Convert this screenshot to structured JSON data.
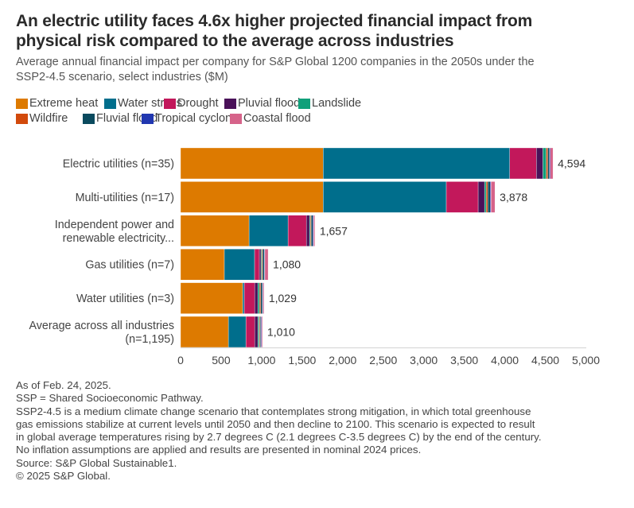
{
  "title": "An electric utility faces 4.6x higher projected financial impact from physical risk compared to the average across industries",
  "title_lines": [
    "An electric utility faces 4.6x higher projected financial impact from",
    "physical risk compared to the average across industries"
  ],
  "subtitle_lines": [
    "Average annual financial impact per company for S&P Global 1200 companies in the 2050s under the",
    "SSP2-4.5 scenario, select industries ($M)"
  ],
  "footer_lines": [
    "As of Feb. 24, 2025.",
    "SSP = Shared Socioeconomic Pathway.",
    "SSP2-4.5 is a medium climate change scenario that contemplates strong mitigation, in which total greenhouse",
    "gas emissions stabilize at current levels until 2050 and then decline to 2100. This scenario is expected to result",
    "in global average temperatures rising by 2.7 degrees C (2.1 degrees C-3.5 degrees C) by the end of the century.",
    "No inflation assumptions are applied and results are presented in nominal 2024 prices.",
    "Source: S&P Global Sustainable1.",
    "© 2025 S&P Global."
  ],
  "chart_data": {
    "type": "bar",
    "orientation": "horizontal",
    "stacked": true,
    "title": "An electric utility faces 4.6x higher projected financial impact from physical risk compared to the average across industries",
    "subtitle": "Average annual financial impact per company for S&P Global 1200 companies in the 2050s under the SSP2-4.5 scenario, select industries ($M)",
    "xlabel": "",
    "ylabel": "",
    "xlim": [
      0,
      5000
    ],
    "xticks": [
      0,
      500,
      1000,
      1500,
      2000,
      2500,
      3000,
      3500,
      4000,
      4500,
      5000
    ],
    "xtick_labels": [
      "0",
      "500",
      "1,000",
      "1,500",
      "2,000",
      "2,500",
      "3,000",
      "3,500",
      "4,000",
      "4,500",
      "5,000"
    ],
    "grid": false,
    "legend_position": "top",
    "categories": [
      [
        "Electric utilities (n=35)"
      ],
      [
        "Multi-utilities (n=17)"
      ],
      [
        "Independent power and",
        "renewable electricity..."
      ],
      [
        "Gas utilities (n=7)"
      ],
      [
        "Water utilities (n=3)"
      ],
      [
        "Average across all industries",
        "(n=1,195)"
      ]
    ],
    "totals": [
      4594,
      3878,
      1657,
      1080,
      1029,
      1010
    ],
    "total_labels": [
      "4,594",
      "3,878",
      "1,657",
      "1,080",
      "1,029",
      "1,010"
    ],
    "series": [
      {
        "name": "Extreme heat",
        "color": "#dd7a00",
        "values": [
          1760,
          1760,
          845,
          540,
          766,
          590
        ]
      },
      {
        "name": "Water stress",
        "color": "#006e8c",
        "values": [
          2300,
          1518,
          481,
          373,
          20,
          216
        ]
      },
      {
        "name": "Drought",
        "color": "#c2185b",
        "values": [
          330,
          393,
          226,
          59,
          128,
          108
        ]
      },
      {
        "name": "Pluvial flood",
        "color": "#4a1159",
        "values": [
          80,
          79,
          39,
          20,
          39,
          39
        ]
      },
      {
        "name": "Landslide",
        "color": "#10a07a",
        "values": [
          40,
          20,
          10,
          10,
          20,
          15
        ]
      },
      {
        "name": "Wildfire",
        "color": "#d24a0c",
        "values": [
          20,
          20,
          10,
          10,
          15,
          10
        ]
      },
      {
        "name": "Fluvial flood",
        "color": "#0b4a5e",
        "values": [
          20,
          29,
          20,
          20,
          20,
          12
        ]
      },
      {
        "name": "Tropical cyclone",
        "color": "#2137b0",
        "values": [
          10,
          10,
          10,
          8,
          8,
          8
        ]
      },
      {
        "name": "Coastal flood",
        "color": "#d6638a",
        "values": [
          34,
          49,
          16,
          40,
          13,
          12
        ]
      }
    ]
  }
}
